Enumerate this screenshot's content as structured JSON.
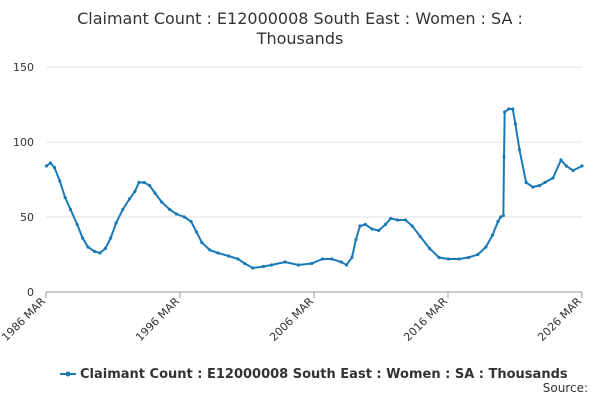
{
  "chart_data": {
    "type": "line",
    "title": "Claimant Count : E12000008 South East : Women : SA : Thousands",
    "source": "Source:",
    "xlim": [
      1986.17,
      2026.17
    ],
    "xticks": [
      {
        "value": 1986.17,
        "label": "1986 MAR"
      },
      {
        "value": 1996.17,
        "label": "1996 MAR"
      },
      {
        "value": 2006.17,
        "label": "2006 MAR"
      },
      {
        "value": 2016.17,
        "label": "2016 MAR"
      },
      {
        "value": 2026.17,
        "label": "2026 MAR"
      }
    ],
    "ylim": [
      0,
      150
    ],
    "yticks": [
      0,
      50,
      100,
      150
    ],
    "grid": true,
    "x": [
      1986.2,
      1986.5,
      1986.8,
      1987.2,
      1987.6,
      1988.0,
      1988.5,
      1988.9,
      1989.3,
      1989.8,
      1990.2,
      1990.6,
      1991.0,
      1991.4,
      1991.9,
      1992.4,
      1992.8,
      1993.1,
      1993.5,
      1993.9,
      1994.3,
      1994.8,
      1995.4,
      1995.9,
      1996.5,
      1997.0,
      1997.4,
      1997.8,
      1998.4,
      1999.0,
      1999.8,
      2000.5,
      2001.0,
      2001.6,
      2002.4,
      2003.0,
      2004.0,
      2005.0,
      2006.0,
      2006.8,
      2007.5,
      2008.2,
      2008.6,
      2009.0,
      2009.3,
      2009.6,
      2010.0,
      2010.5,
      2011.0,
      2011.5,
      2011.9,
      2012.4,
      2013.0,
      2013.5,
      2014.1,
      2014.8,
      2015.5,
      2016.2,
      2017.0,
      2017.7,
      2018.4,
      2019.0,
      2019.5,
      2019.9,
      2020.1,
      2020.3,
      2020.35,
      2020.4,
      2020.7,
      2021.0,
      2021.2,
      2021.5,
      2022.0,
      2022.5,
      2023.0,
      2023.4,
      2024.0,
      2024.6,
      2025.0,
      2025.5,
      2026.17
    ],
    "series": [
      {
        "name": "Claimant Count : E12000008 South East : Women : SA : Thousands",
        "color": "#1a7ab8",
        "values": [
          84,
          86,
          83,
          74,
          63,
          55,
          45,
          36,
          30,
          27,
          26,
          29,
          36,
          46,
          55,
          62,
          67,
          73,
          73,
          71,
          66,
          60,
          55,
          52,
          50,
          47,
          40,
          33,
          28,
          26,
          24,
          22,
          19,
          16,
          17,
          18,
          20,
          18,
          19,
          22,
          22,
          20,
          18,
          23,
          35,
          44,
          45,
          42,
          41,
          45,
          49,
          48,
          48,
          44,
          37,
          29,
          23,
          22,
          22,
          23,
          25,
          30,
          38,
          47,
          50,
          51,
          90,
          120,
          122,
          122,
          112,
          95,
          73,
          70,
          71,
          73,
          76,
          88,
          84,
          81,
          84
        ]
      }
    ]
  }
}
